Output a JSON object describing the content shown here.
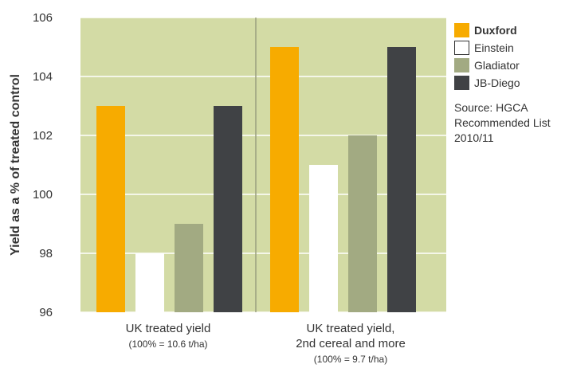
{
  "chart_data": {
    "type": "bar",
    "categories": [
      {
        "label": "UK treated yield",
        "sublabel": "(100% = 10.6 t/ha)"
      },
      {
        "label": "UK treated yield,",
        "label2": "2nd cereal and more",
        "sublabel": "(100% = 9.7 t/ha)"
      }
    ],
    "series": [
      {
        "name": "Duxford",
        "color": "#f7ab00",
        "values": [
          103,
          105
        ]
      },
      {
        "name": "Einstein",
        "color": "#ffffff",
        "values": [
          98,
          101
        ]
      },
      {
        "name": "Gladiator",
        "color": "#a2aa82",
        "values": [
          99,
          102
        ]
      },
      {
        "name": "JB-Diego",
        "color": "#404245",
        "values": [
          103,
          105
        ]
      }
    ],
    "ylabel": "Yield as a % of treated control",
    "ylim": [
      96,
      106
    ],
    "yticks": [
      96,
      98,
      100,
      102,
      104,
      106
    ],
    "grid": true,
    "legend_position": "right",
    "plot_background": "#d3dba5",
    "source_lines": [
      "Source: HGCA",
      "Recommended List",
      "2010/11"
    ]
  }
}
